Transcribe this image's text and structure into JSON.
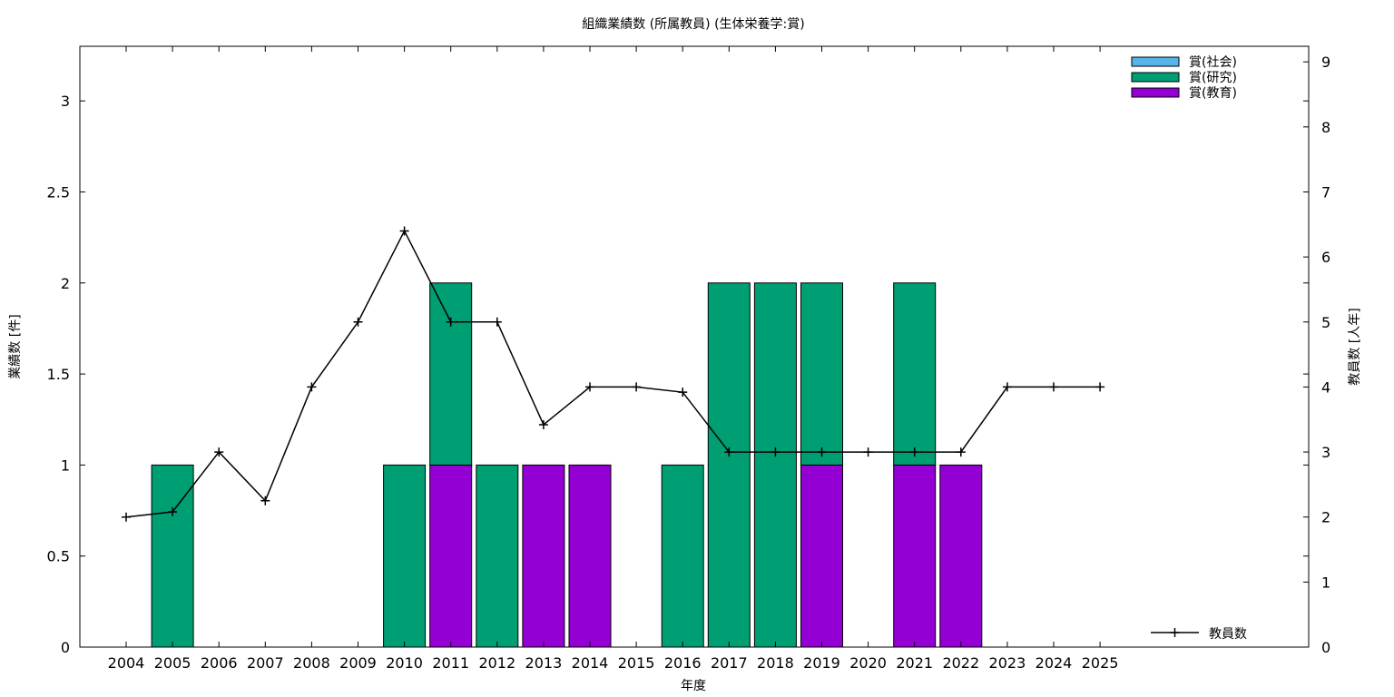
{
  "chart_data": {
    "type": "bar",
    "title": "組織業績数 (所属教員) (生体栄養学:賞)",
    "xlabel": "年度",
    "ylabel": "業績数 [件]",
    "y2label": "教員数 [人年]",
    "categories": [
      "2004",
      "2005",
      "2006",
      "2007",
      "2008",
      "2009",
      "2010",
      "2011",
      "2012",
      "2013",
      "2014",
      "2015",
      "2016",
      "2017",
      "2018",
      "2019",
      "2020",
      "2021",
      "2022",
      "2023",
      "2024",
      "2025"
    ],
    "ylim": [
      0,
      3.3
    ],
    "y2lim": [
      0,
      9.24
    ],
    "yticks": [
      "0",
      "0.5",
      "1",
      "1.5",
      "2",
      "2.5",
      "3"
    ],
    "y2ticks": [
      "0",
      "1",
      "2",
      "3",
      "4",
      "5",
      "6",
      "7",
      "8",
      "9"
    ],
    "stacked": true,
    "series": [
      {
        "name": "賞(教育)",
        "color": "#9400d3",
        "values": [
          0,
          0,
          0,
          0,
          0,
          0,
          0,
          1,
          0,
          1,
          1,
          0,
          0,
          0,
          0,
          1,
          0,
          1,
          1,
          0,
          0,
          0
        ]
      },
      {
        "name": "賞(研究)",
        "color": "#009e73",
        "values": [
          0,
          1,
          0,
          0,
          0,
          0,
          1,
          1,
          1,
          0,
          0,
          0,
          1,
          2,
          2,
          1,
          0,
          1,
          0,
          0,
          0,
          0
        ]
      },
      {
        "name": "賞(社会)",
        "color": "#56b4e9",
        "values": [
          0,
          0,
          0,
          0,
          0,
          0,
          0,
          0,
          0,
          0,
          0,
          0,
          0,
          0,
          0,
          0,
          0,
          0,
          0,
          0,
          0,
          0
        ]
      }
    ],
    "legend_order": [
      "賞(社会)",
      "賞(研究)",
      "賞(教育)"
    ],
    "legend_position": "top-right",
    "line": {
      "name": "教員数",
      "axis": "right",
      "color": "#000000",
      "values": [
        2.0,
        2.08,
        3.0,
        2.25,
        4.0,
        5.0,
        6.4,
        5.0,
        5.0,
        3.42,
        4.0,
        4.0,
        3.92,
        3.0,
        3.0,
        3.0,
        3.0,
        3.0,
        3.0,
        4.0,
        4.0,
        4.0
      ]
    },
    "line_legend_position": "bottom-right",
    "grid": false
  }
}
